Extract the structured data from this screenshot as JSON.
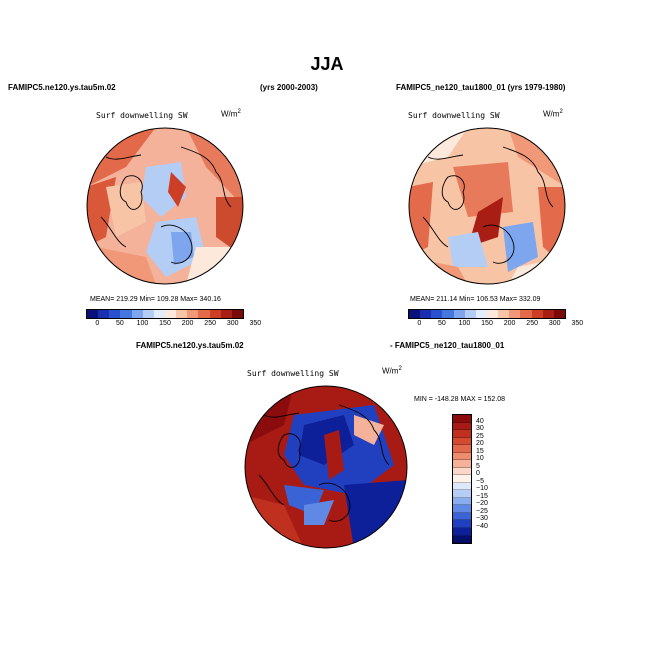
{
  "title": "JJA",
  "panel_left": {
    "header_left": "FAMIPC5.ne120.ys.tau5m.02",
    "header_right": "(yrs 2000-2003)",
    "variable": "Surf downwelling SW",
    "units_base": "W/m",
    "units_exp": "2",
    "stats": "MEAN= 219.29   Min= 109.28   Max= 340.16"
  },
  "panel_right": {
    "header": "FAMIPC5_ne120_tau1800_01 (yrs 1979-1980)",
    "variable": "Surf downwelling SW",
    "units_base": "W/m",
    "units_exp": "2",
    "stats": "MEAN= 211.14   Min= 106.53   Max= 332.09"
  },
  "diff_panel": {
    "header_left": "FAMIPC5.ne120.ys.tau5m.02",
    "header_right": "- FAMIPC5_ne120_tau1800_01",
    "variable": "Surf downwelling SW",
    "units_base": "W/m",
    "units_exp": "2",
    "stats": "MIN = -148.28  MAX = 152.08"
  },
  "abs_colorbar": {
    "ticks": [
      "0",
      "50",
      "100",
      "150",
      "200",
      "250",
      "300",
      "350"
    ],
    "colors": [
      "#08107a",
      "#1a2fb0",
      "#2b50d0",
      "#4677e0",
      "#7ea6ee",
      "#b4cdf5",
      "#e2ecfb",
      "#fde9dc",
      "#f8c4a6",
      "#f09877",
      "#e36a4a",
      "#cc3e25",
      "#a81d14",
      "#7a0a0a"
    ]
  },
  "diff_colorbar": {
    "ticks": [
      "40",
      "30",
      "25",
      "20",
      "15",
      "10",
      "5",
      "0",
      "−5",
      "−10",
      "−15",
      "−20",
      "−25",
      "−30",
      "−40"
    ],
    "colors": [
      "#8a0c0c",
      "#a81a14",
      "#c0301f",
      "#d44a30",
      "#e26a4c",
      "#ee8c6e",
      "#f4b29a",
      "#fad7c9",
      "#fff2ea",
      "#dde8fb",
      "#b6cdf6",
      "#8aadee",
      "#5f89e4",
      "#3a63d6",
      "#2140c0",
      "#0e1f9a",
      "#050f6a"
    ]
  }
}
